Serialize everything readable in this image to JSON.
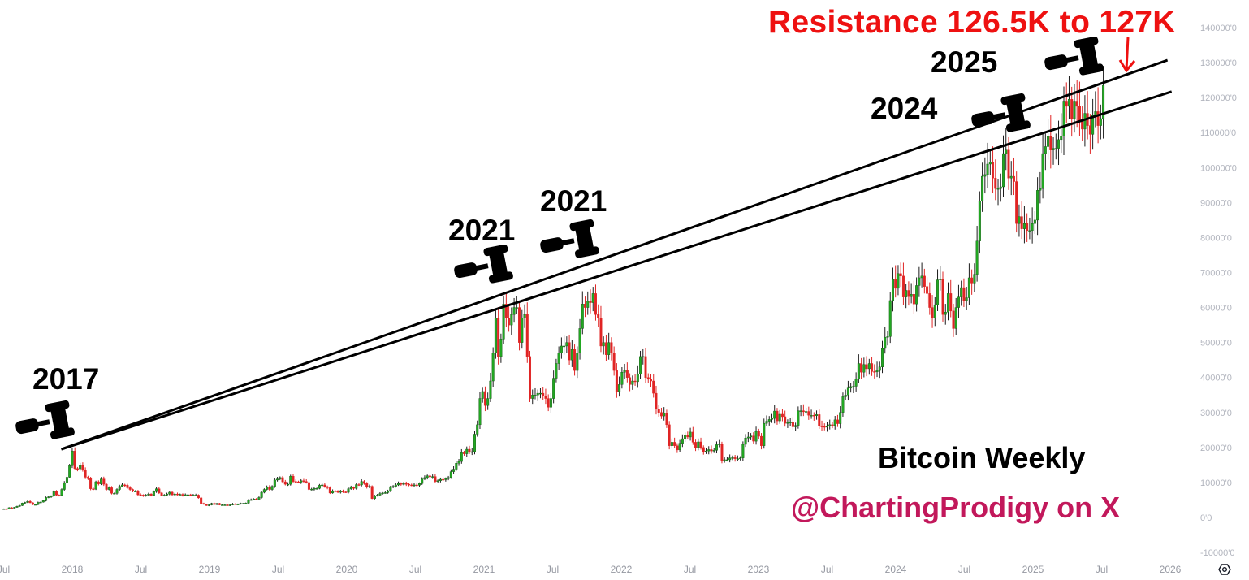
{
  "chart_data": {
    "type": "candlestick",
    "title": "Bitcoin Weekly",
    "interval": "weekly",
    "start_week": "2017-07-03",
    "ylim": [
      -10000,
      140000
    ],
    "y_ticks": [
      "140000'0",
      "130000'0",
      "120000'0",
      "110000'0",
      "100000'0",
      "90000'0",
      "80000'0",
      "70000'0",
      "60000'0",
      "50000'0",
      "40000'0",
      "30000'0",
      "20000'0",
      "10000'0",
      "0'0",
      "-10000'0"
    ],
    "y_tick_values": [
      140000,
      130000,
      120000,
      110000,
      100000,
      90000,
      80000,
      70000,
      60000,
      50000,
      40000,
      30000,
      20000,
      10000,
      0,
      -10000
    ],
    "x_ticks": [
      {
        "label": "Jul",
        "t": 2017.5
      },
      {
        "label": "2018",
        "t": 2018
      },
      {
        "label": "Jul",
        "t": 2018.5
      },
      {
        "label": "2019",
        "t": 2019
      },
      {
        "label": "Jul",
        "t": 2019.5
      },
      {
        "label": "2020",
        "t": 2020
      },
      {
        "label": "Jul",
        "t": 2020.5
      },
      {
        "label": "2021",
        "t": 2021
      },
      {
        "label": "Jul",
        "t": 2021.5
      },
      {
        "label": "2022",
        "t": 2022
      },
      {
        "label": "Jul",
        "t": 2022.5
      },
      {
        "label": "2023",
        "t": 2023
      },
      {
        "label": "Jul",
        "t": 2023.5
      },
      {
        "label": "2024",
        "t": 2024
      },
      {
        "label": "Jul",
        "t": 2024.5
      },
      {
        "label": "2025",
        "t": 2025
      },
      {
        "label": "Jul",
        "t": 2025.5
      },
      {
        "label": "2026",
        "t": 2026
      }
    ],
    "weekly_closes": [
      2500,
      2400,
      2800,
      2700,
      2900,
      3200,
      3400,
      4100,
      4300,
      4600,
      4200,
      3700,
      3700,
      4300,
      4400,
      4800,
      5700,
      5900,
      6100,
      7400,
      6400,
      6300,
      8000,
      9900,
      11500,
      14800,
      19000,
      14000,
      13900,
      15000,
      13500,
      11500,
      11100,
      8200,
      8100,
      10200,
      9600,
      11000,
      9500,
      8000,
      8500,
      6900,
      6900,
      8000,
      8900,
      9300,
      9200,
      8500,
      8000,
      7500,
      7500,
      6500,
      6400,
      6200,
      6400,
      6700,
      6300,
      7400,
      8200,
      7000,
      6300,
      6400,
      6700,
      7200,
      6500,
      6700,
      6600,
      6600,
      6300,
      6500,
      6500,
      6400,
      6400,
      6400,
      5600,
      4000,
      3800,
      3400,
      3600,
      4000,
      3700,
      4000,
      3600,
      3600,
      3600,
      3400,
      3600,
      3900,
      3800,
      3800,
      4000,
      4000,
      4100,
      5000,
      5100,
      5300,
      5200,
      5700,
      7200,
      8000,
      8700,
      8000,
      8900,
      10700,
      11000,
      11400,
      10200,
      9500,
      9500,
      11800,
      10300,
      10200,
      10100,
      10500,
      10300,
      10000,
      8000,
      8100,
      8300,
      8300,
      9200,
      9300,
      8800,
      8500,
      7000,
      7600,
      7500,
      7200,
      7500,
      7300,
      7200,
      8200,
      8600,
      8300,
      9400,
      9300,
      10300,
      9700,
      8700,
      8900,
      5400,
      6200,
      6400,
      6800,
      7000,
      7100,
      7500,
      8800,
      8900,
      9300,
      9700,
      9500,
      9700,
      9500,
      9300,
      9200,
      9300,
      9200,
      9700,
      11000,
      11400,
      11900,
      11600,
      11700,
      10300,
      10500,
      10900,
      10800,
      11100,
      11400,
      13100,
      13800,
      15500,
      16000,
      18500,
      18200,
      19500,
      18800,
      18800,
      23800,
      26500,
      34000,
      36000,
      32000,
      34000,
      39000,
      47000,
      57000,
      46000,
      51000,
      61000,
      57000,
      55000,
      58000,
      60000,
      60000,
      50000,
      57000,
      58000,
      46000,
      34000,
      35000,
      35000,
      35500,
      35500,
      34700,
      34000,
      31500,
      34000,
      39800,
      44000,
      47000,
      49000,
      49000,
      50000,
      45000,
      48000,
      42000,
      47000,
      54000,
      61000,
      60000,
      61800,
      61400,
      64000,
      58000,
      57000,
      49000,
      50000,
      46500,
      50000,
      47000,
      42000,
      36000,
      38000,
      41500,
      42000,
      40000,
      38000,
      39000,
      38800,
      41000,
      46000,
      46000,
      40000,
      39500,
      39000,
      35500,
      31000,
      30000,
      29000,
      29900,
      26500,
      20500,
      21500,
      20500,
      19300,
      21200,
      22500,
      23600,
      23000,
      24400,
      21500,
      20000,
      21600,
      20000,
      18800,
      19000,
      19400,
      19000,
      19200,
      20800,
      21000,
      16300,
      16500,
      16500,
      17000,
      17100,
      16800,
      16800,
      17000,
      20900,
      22700,
      23000,
      23300,
      21800,
      24600,
      23200,
      20500,
      26900,
      27500,
      28000,
      28300,
      30400,
      27600,
      29500,
      28800,
      26900,
      27100,
      27200,
      25900,
      26300,
      30500,
      30500,
      30200,
      30300,
      29200,
      29200,
      29100,
      29400,
      26100,
      26000,
      25800,
      26200,
      26500,
      26300,
      27900,
      26800,
      30000,
      34500,
      35000,
      37000,
      37400,
      37500,
      39500,
      44000,
      41500,
      43700,
      42500,
      44000,
      41700,
      41600,
      42000,
      43000,
      48300,
      51500,
      51700,
      62000,
      68000,
      65500,
      69700,
      69000,
      63000,
      64900,
      63100,
      63800,
      61000,
      66300,
      68500,
      69000,
      66000,
      64000,
      60000,
      57000,
      60800,
      67900,
      68200,
      58000,
      58700,
      64000,
      59000,
      54000,
      60000,
      63000,
      65700,
      62000,
      62800,
      68500,
      67000,
      69500,
      79000,
      90500,
      97500,
      98000,
      101000,
      101500,
      97000,
      94000,
      94000,
      94500,
      104000,
      105000,
      97000,
      97500,
      96000,
      84000,
      86000,
      82500,
      84000,
      82000,
      82000,
      84000,
      85000,
      93500,
      94000,
      104000,
      106000,
      109000,
      105000,
      105500,
      105500,
      108000,
      109000,
      119000,
      117500,
      119500,
      114000,
      119000,
      117500,
      113500,
      111000,
      115500,
      112000,
      109500,
      115000,
      116000,
      112000,
      114000,
      123500
    ],
    "trendlines": [
      {
        "start": {
          "t": 2017.92,
          "value": 19500
        },
        "end": {
          "t": 2025.98,
          "value": 130700
        }
      },
      {
        "start": {
          "t": 2017.92,
          "value": 19500
        },
        "end": {
          "t": 2026.01,
          "value": 121700
        }
      }
    ],
    "colors": {
      "up": "#22a722",
      "down": "#e02424",
      "wick_up": "#1b1b1b",
      "wick_down": "#e02424",
      "trendline": "#000000",
      "resistance_text": "#ee1111",
      "handle": "#c2185b"
    }
  },
  "annotations": {
    "resistance": "Resistance 126.5K to 127K",
    "label_2025": "2025",
    "label_2024": "2024",
    "label_2021_a": "2021",
    "label_2021_b": "2021",
    "label_2017": "2017",
    "series_title": "Bitcoin Weekly",
    "credit": "@ChartingProdigy on X"
  },
  "icons": {
    "gavel": "gavel-icon",
    "settings": "settings-hex-icon"
  }
}
